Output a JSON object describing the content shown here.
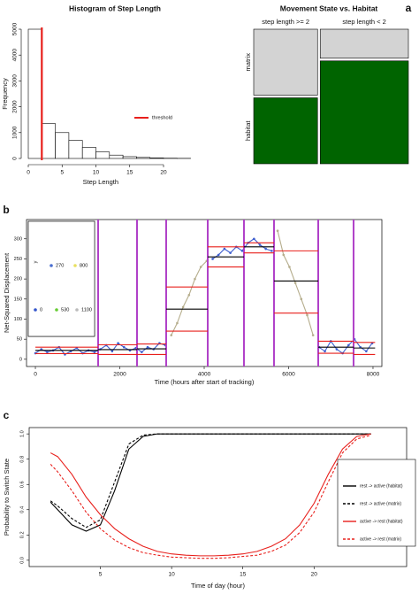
{
  "chart_data": [
    {
      "type": "histogram",
      "panel_label": "a",
      "title": "Histogram of Step Length",
      "x_label": "Step Length",
      "y_label": "Frequency",
      "bins": [
        0,
        2,
        4,
        6,
        8,
        10,
        12,
        14,
        16,
        18,
        20,
        22,
        24
      ],
      "values": [
        5000,
        1350,
        1000,
        700,
        430,
        250,
        130,
        70,
        40,
        20,
        10,
        5
      ],
      "color": "#ffffff",
      "xlim": [
        0,
        24
      ],
      "ylim": [
        0,
        5000
      ],
      "xticks": [
        0,
        5,
        10,
        15,
        20
      ],
      "yticks": [
        0,
        1000,
        2000,
        3000,
        4000,
        5000
      ],
      "threshold": {
        "label": "threshold",
        "value": 2,
        "color": "#e8201c"
      }
    },
    {
      "type": "mosaic",
      "title": "Movement State vs. Habitat",
      "row_names": [
        "matrix",
        "habitat"
      ],
      "row_colors": [
        "#d3d3d3",
        "#006400"
      ],
      "columns": [
        {
          "label": "step length >= 2",
          "share": 0.42,
          "rows": [
            0.5,
            0.5
          ]
        },
        {
          "label": "step length < 2",
          "share": 0.58,
          "rows": [
            0.22,
            0.78
          ]
        }
      ]
    },
    {
      "type": "line",
      "panel_label": "b",
      "x_label": "Time (hours after start of tracking)",
      "y_label": "Net-Squared Displacement",
      "xlim": [
        -210,
        8210
      ],
      "ylim": [
        -18,
        348
      ],
      "xticks": [
        0,
        2000,
        4000,
        6000,
        8000
      ],
      "yticks": [
        0,
        50,
        100,
        150,
        200,
        250,
        300
      ],
      "x": [
        0,
        140,
        280,
        420,
        560,
        700,
        840,
        980,
        1120,
        1260,
        1400,
        1540,
        1680,
        1820,
        1960,
        2100,
        2240,
        2380,
        2520,
        2660,
        2800,
        2940,
        3080,
        3220,
        3360,
        3500,
        3640,
        3780,
        3920,
        4060,
        4200,
        4340,
        4480,
        4620,
        4760,
        4900,
        5040,
        5180,
        5320,
        5460,
        5600,
        5740,
        5880,
        6020,
        6160,
        6300,
        6440,
        6580,
        6720,
        6860,
        7000,
        7140,
        7280,
        7420,
        7560,
        7700,
        7840,
        7980
      ],
      "series": [
        {
          "color": "#3f5fcf",
          "values": [
            15,
            25,
            18,
            22,
            30,
            12,
            20,
            28,
            15,
            22,
            18,
            25,
            35,
            20,
            40,
            30,
            22,
            28,
            18,
            30,
            25,
            40,
            35,
            null,
            null,
            null,
            null,
            null,
            null,
            null,
            250,
            260,
            275,
            265,
            280,
            270,
            290,
            300,
            285,
            275,
            270,
            null,
            null,
            null,
            null,
            null,
            null,
            null,
            30,
            20,
            45,
            25,
            15,
            35,
            50,
            30,
            20,
            40
          ]
        },
        {
          "color": "#b5ad8c",
          "values": [
            null,
            null,
            null,
            null,
            null,
            null,
            null,
            null,
            null,
            null,
            null,
            null,
            null,
            null,
            null,
            null,
            null,
            null,
            null,
            null,
            null,
            null,
            null,
            60,
            90,
            130,
            160,
            200,
            230,
            245,
            null,
            null,
            null,
            null,
            null,
            null,
            null,
            null,
            null,
            null,
            null,
            320,
            260,
            230,
            190,
            150,
            110,
            60,
            null,
            null,
            null,
            null,
            null,
            null,
            null,
            null,
            null,
            null
          ]
        }
      ],
      "breakpoints": [
        1487,
        2408,
        3099,
        4084,
        4942,
        5654,
        6702,
        7539
      ],
      "breakpoint_color": "#b040c8",
      "segment_colors": {
        "mean": "#000000",
        "bound": "#e8201c"
      },
      "segments": [
        {
          "x": [
            0,
            1487
          ],
          "mean": 22,
          "upper": 30,
          "lower": 14
        },
        {
          "x": [
            1487,
            2408
          ],
          "mean": 24,
          "upper": 36,
          "lower": 12
        },
        {
          "x": [
            2408,
            3099
          ],
          "mean": 26,
          "upper": 38,
          "lower": 12
        },
        {
          "x": [
            3099,
            4084
          ],
          "mean": 125,
          "upper": 180,
          "lower": 70
        },
        {
          "x": [
            4084,
            4942
          ],
          "mean": 255,
          "upper": 280,
          "lower": 230
        },
        {
          "x": [
            4942,
            5654
          ],
          "mean": 280,
          "upper": 290,
          "lower": 265
        },
        {
          "x": [
            5654,
            6702
          ],
          "mean": 195,
          "upper": 270,
          "lower": 115
        },
        {
          "x": [
            6702,
            7539
          ],
          "mean": 30,
          "upper": 45,
          "lower": 15
        },
        {
          "x": [
            7539,
            8050
          ],
          "mean": 28,
          "upper": 42,
          "lower": 12
        }
      ],
      "color_legend": {
        "title": "y",
        "items": [
          {
            "label": "270",
            "color": "#4a6fd0"
          },
          {
            "label": "800",
            "color": "#e8e060"
          },
          {
            "label": "0",
            "color": "#3355cc"
          },
          {
            "label": "530",
            "color": "#66cc33"
          },
          {
            "label": "1100",
            "color": "#bbbbbb"
          }
        ]
      }
    },
    {
      "type": "line",
      "panel_label": "c",
      "x_label": "Time of day (hour)",
      "y_label": "Probability to Switch State",
      "xlim": [
        0,
        26.5
      ],
      "ylim": [
        -0.05,
        1.05
      ],
      "xticks": [
        5,
        10,
        15,
        20
      ],
      "yticks": [
        {
          "value": 0,
          "label": "0.0"
        },
        0.2,
        0.4,
        0.6,
        0.8,
        {
          "value": 1,
          "label": "1.0"
        }
      ],
      "legend": "right",
      "x": [
        1.5,
        2,
        3,
        4,
        5,
        6,
        7,
        8,
        9,
        10,
        11,
        12,
        13,
        14,
        15,
        16,
        17,
        18,
        19,
        20,
        21,
        22,
        23,
        24
      ],
      "series": [
        {
          "name": "rest -> active (habitat)",
          "color": "#000000",
          "dash": false,
          "values": [
            0.46,
            0.4,
            0.28,
            0.23,
            0.28,
            0.55,
            0.88,
            0.98,
            1,
            1,
            1,
            1,
            1,
            1,
            1,
            1,
            1,
            1,
            1,
            1,
            1,
            1,
            1,
            1
          ]
        },
        {
          "name": "rest -> active (matrix)",
          "color": "#000000",
          "dash": true,
          "values": [
            0.47,
            0.43,
            0.33,
            0.26,
            0.32,
            0.62,
            0.92,
            0.99,
            1,
            1,
            1,
            1,
            1,
            1,
            1,
            1,
            1,
            1,
            1,
            1,
            1,
            1,
            1,
            1
          ]
        },
        {
          "name": "active -> rest (habitat)",
          "color": "#e8201c",
          "dash": false,
          "values": [
            0.85,
            0.82,
            0.68,
            0.5,
            0.36,
            0.25,
            0.17,
            0.11,
            0.07,
            0.05,
            0.04,
            0.035,
            0.035,
            0.04,
            0.05,
            0.07,
            0.11,
            0.17,
            0.28,
            0.45,
            0.68,
            0.88,
            0.98,
            1
          ]
        },
        {
          "name": "active -> rest (matrix)",
          "color": "#e8201c",
          "dash": true,
          "values": [
            0.76,
            0.7,
            0.55,
            0.38,
            0.25,
            0.16,
            0.1,
            0.06,
            0.04,
            0.025,
            0.02,
            0.015,
            0.015,
            0.02,
            0.03,
            0.04,
            0.07,
            0.12,
            0.22,
            0.38,
            0.62,
            0.85,
            0.96,
            0.99
          ]
        }
      ]
    }
  ]
}
